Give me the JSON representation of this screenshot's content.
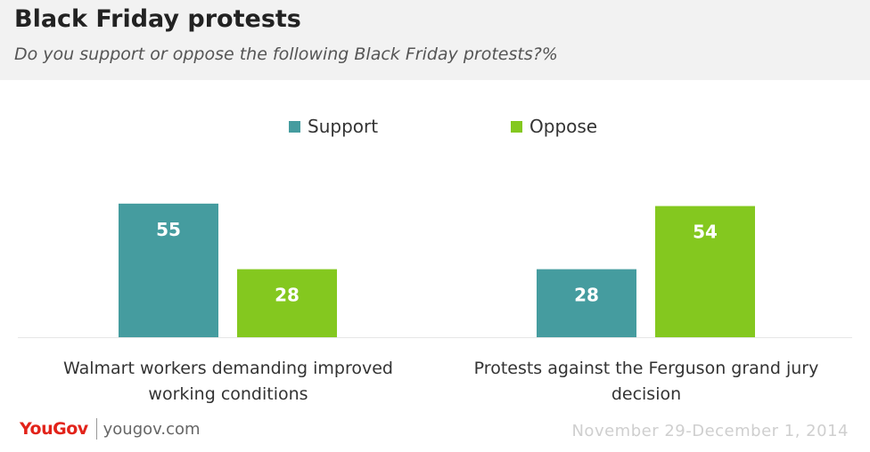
{
  "header": {
    "title": "Black Friday protests",
    "subtitle": "Do you support or oppose the following Black Friday protests?%"
  },
  "chart_data": {
    "type": "bar",
    "categories": [
      "Walmart workers demanding improved working conditions",
      "Protests against the Ferguson grand jury decision"
    ],
    "series": [
      {
        "name": "Support",
        "color": "#459c9f",
        "values": [
          55,
          28
        ]
      },
      {
        "name": "Oppose",
        "color": "#84c81f",
        "values": [
          28,
          54
        ]
      }
    ],
    "ylim": [
      0,
      60
    ],
    "grid": false,
    "legend": "top-center",
    "data_labels": true
  },
  "footer": {
    "logo": "YouGov",
    "site": "yougov.com",
    "date": "November 29-December 1, 2014"
  }
}
